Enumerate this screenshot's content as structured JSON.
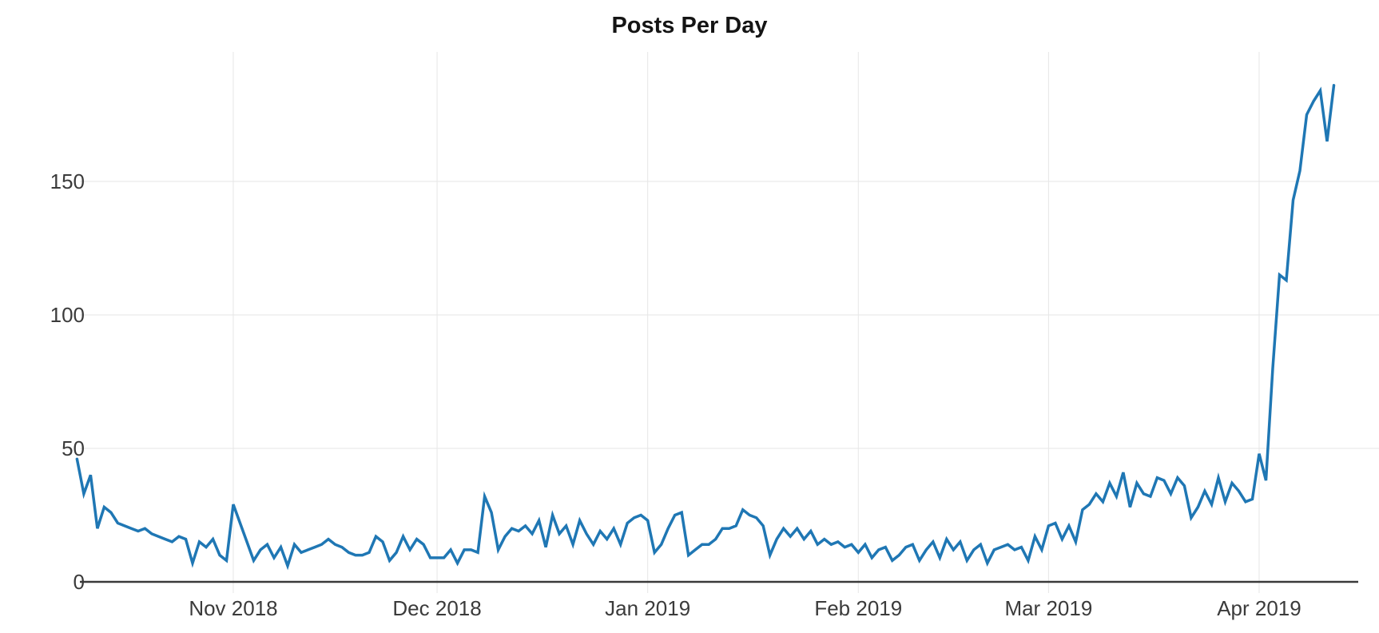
{
  "title": "Posts Per Day",
  "chart_data": {
    "type": "line",
    "title": "Posts Per Day",
    "series_name": "posts per day",
    "start_date": "2018-10-09",
    "frequency": "daily",
    "values": [
      46,
      33,
      40,
      20,
      28,
      26,
      22,
      21,
      20,
      19,
      20,
      18,
      17,
      16,
      15,
      17,
      16,
      7,
      15,
      13,
      16,
      10,
      8,
      29,
      22,
      15,
      8,
      12,
      14,
      9,
      13,
      6,
      14,
      11,
      12,
      13,
      14,
      16,
      14,
      13,
      11,
      10,
      10,
      11,
      17,
      15,
      8,
      11,
      17,
      12,
      16,
      14,
      9,
      9,
      9,
      12,
      7,
      12,
      12,
      11,
      32,
      26,
      12,
      17,
      20,
      19,
      21,
      18,
      23,
      13,
      25,
      18,
      21,
      14,
      23,
      18,
      14,
      19,
      16,
      20,
      14,
      22,
      24,
      25,
      23,
      11,
      14,
      20,
      25,
      26,
      10,
      12,
      14,
      14,
      16,
      20,
      20,
      21,
      27,
      25,
      24,
      21,
      10,
      16,
      20,
      17,
      20,
      16,
      19,
      14,
      16,
      14,
      15,
      13,
      14,
      11,
      14,
      9,
      12,
      13,
      8,
      10,
      13,
      14,
      8,
      12,
      15,
      9,
      16,
      12,
      15,
      8,
      12,
      14,
      7,
      12,
      13,
      14,
      12,
      13,
      8,
      17,
      12,
      21,
      22,
      16,
      21,
      15,
      27,
      29,
      33,
      30,
      37,
      32,
      41,
      28,
      37,
      33,
      32,
      39,
      38,
      33,
      39,
      36,
      24,
      28,
      34,
      29,
      39,
      30,
      37,
      34,
      30,
      31,
      48,
      38,
      80,
      115,
      113,
      143,
      154,
      175,
      180,
      184,
      165,
      186
    ],
    "x_tick_labels": [
      "Nov 2018",
      "Dec 2018",
      "Jan 2019",
      "Feb 2019",
      "Mar 2019",
      "Apr 2019"
    ],
    "x_tick_day_offsets": [
      23,
      53,
      84,
      115,
      143,
      174
    ],
    "y_ticks": [
      0,
      50,
      100,
      150
    ],
    "ylim": [
      0,
      198
    ],
    "xlabel": "",
    "ylabel": "",
    "grid": true,
    "legend": "none",
    "line_color": "#1f77b4",
    "grid_color": "#e6e6e6",
    "axis_color": "#3a3a3a",
    "tick_label_color": "#3b3b3b",
    "background": "#ffffff"
  }
}
